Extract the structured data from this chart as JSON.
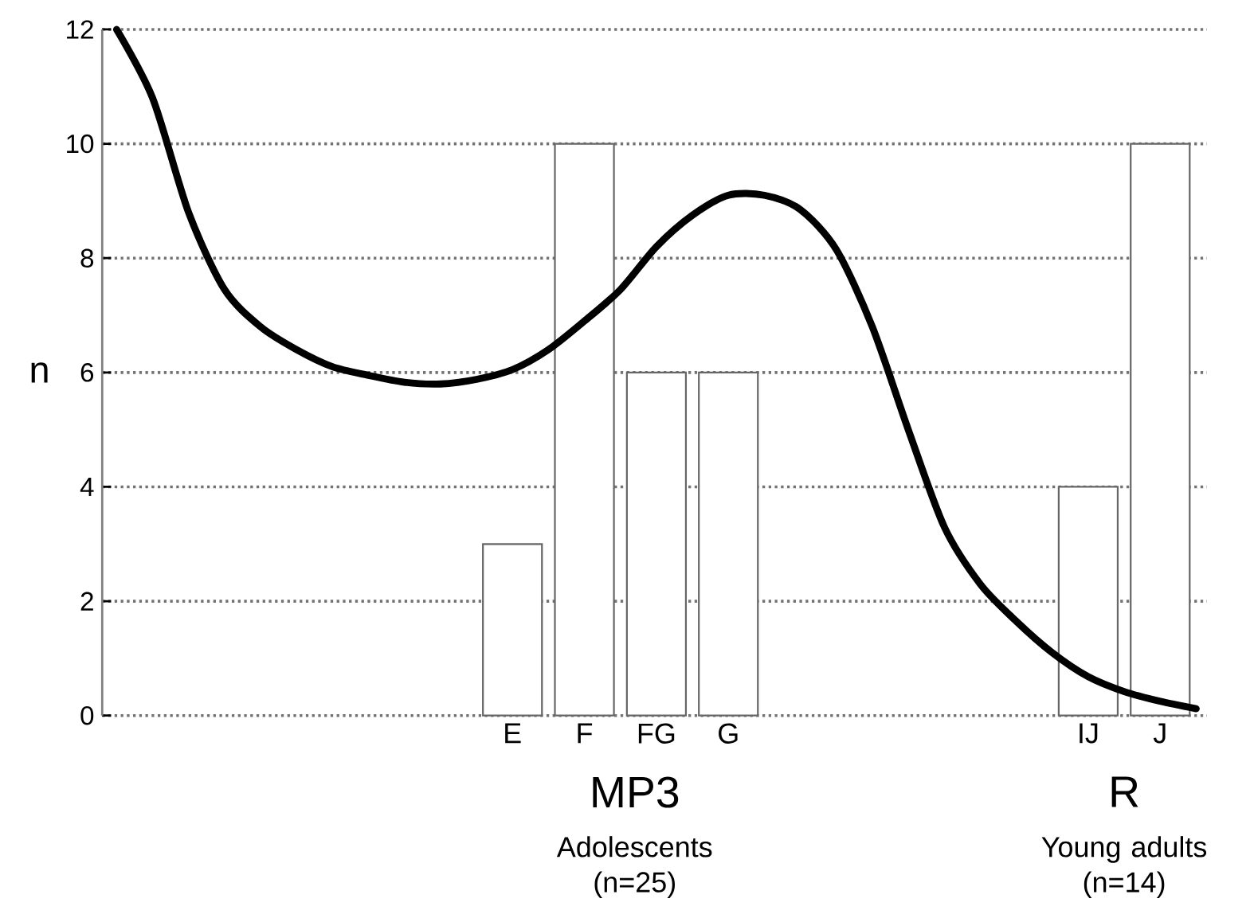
{
  "chart_data": {
    "type": "bar",
    "ylabel": "n",
    "categories": [
      null,
      null,
      null,
      null,
      null,
      null,
      null,
      null,
      null,
      null,
      null,
      "E",
      null,
      "F",
      null,
      "FG",
      null,
      "G",
      null,
      null,
      null,
      null,
      null,
      null,
      null,
      null,
      null,
      "IJ",
      null,
      "J",
      null
    ],
    "series": [
      {
        "color": "#ffffff",
        "values": [
          null,
          null,
          null,
          null,
          null,
          null,
          null,
          null,
          null,
          null,
          null,
          3,
          null,
          10,
          null,
          6,
          null,
          6,
          null,
          null,
          null,
          null,
          null,
          null,
          null,
          null,
          null,
          4,
          null,
          10,
          null
        ]
      },
      {
        "type": "line",
        "color": "#000000",
        "line_style": "solid",
        "marker": "none",
        "values": [
          12,
          10.8,
          8.8,
          7.45,
          6.8,
          6.4,
          6.1,
          5.95,
          5.83,
          5.8,
          5.88,
          6.05,
          6.4,
          6.9,
          7.45,
          8.2,
          8.75,
          9.1,
          9.1,
          8.85,
          8.15,
          6.8,
          5.0,
          3.3,
          2.3,
          1.65,
          1.1,
          0.68,
          0.42,
          0.25,
          0.12
        ]
      }
    ],
    "ylim": [
      0,
      12
    ],
    "yticks": [
      0,
      2,
      4,
      6,
      8,
      10,
      12
    ],
    "grid": "y",
    "annotations": [
      "MP3",
      "Adolescents (n=25)",
      "R",
      "Young adults (n=14)"
    ]
  }
}
